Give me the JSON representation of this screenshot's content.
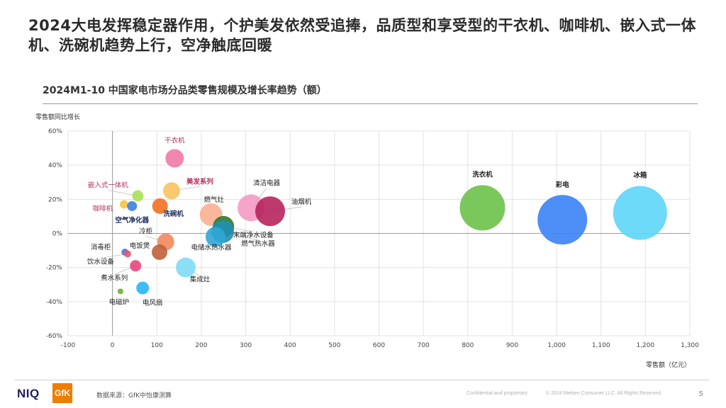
{
  "headline": "2024大电发挥稳定器作用，个护美发依然受追捧，品质型和享受型的干衣机、咖啡机、嵌入式一体机、洗碗机趋势上行，空净触底回暖",
  "chart_title": "2024M1-10 中国家电市场分品类零售规模及增长率趋势（额）",
  "footer": {
    "source": "数据来源：GfK中怡康测算",
    "confidential": "Confidential and proprietary",
    "copyright": "© 2024 Nielsen Consumer LLC. All Rights Reserved.",
    "page_number": "5",
    "logo_niq": "NIQ",
    "logo_gfk": "GfK"
  },
  "chart_data": {
    "type": "bubble",
    "xlabel": "零售额（亿元）",
    "ylabel": "零售额同比增长",
    "xlim": [
      -100,
      1300
    ],
    "ylim": [
      -60,
      60
    ],
    "x_ticks": [
      "-100",
      "0",
      "100",
      "200",
      "300",
      "400",
      "500",
      "600",
      "700",
      "800",
      "900",
      "1,000",
      "1,100",
      "1,200",
      "1,300"
    ],
    "y_ticks": [
      "60%",
      "40%",
      "20%",
      "0%",
      "-20%",
      "-40%",
      "-60%"
    ],
    "grid": true,
    "points": [
      {
        "name": "干衣机",
        "x": 140,
        "y": 44,
        "size": 13,
        "color": "#f07aa6",
        "label_color": "#b03060",
        "bold": false
      },
      {
        "name": "嵌入式一体机",
        "x": 57,
        "y": 22,
        "size": 8,
        "color": "#a9e05a",
        "label_color": "#b03060",
        "bold": false
      },
      {
        "name": "美发系列",
        "x": 133,
        "y": 25,
        "size": 12,
        "color": "#f9c25e",
        "label_color": "#b03060",
        "bold": true
      },
      {
        "name": "咖啡机",
        "x": 26,
        "y": 17,
        "size": 6,
        "color": "#f5c542",
        "label_color": "#b03060",
        "bold": false
      },
      {
        "name": "空气净化器",
        "x": 44,
        "y": 16,
        "size": 7,
        "color": "#3e7fe0",
        "label_color": "#1a2a5c",
        "bold": true
      },
      {
        "name": "洗碗机",
        "x": 107,
        "y": 16,
        "size": 11,
        "color": "#f36f21",
        "label_color": "#1a2a5c",
        "bold": true
      },
      {
        "name": "燃气灶",
        "x": 222,
        "y": 11,
        "size": 16,
        "color": "#f8b08f",
        "label_color": "#222222",
        "bold": false
      },
      {
        "name": "清洁电器",
        "x": 312,
        "y": 15,
        "size": 19,
        "color": "#f59ac4",
        "label_color": "#222222",
        "bold": false
      },
      {
        "name": "油烟机",
        "x": 355,
        "y": 13,
        "size": 21,
        "color": "#b7245c",
        "label_color": "#222222",
        "bold": false
      },
      {
        "name": "末端净水设备",
        "x": 250,
        "y": 4,
        "size": 15,
        "color": "#2d7a2d",
        "label_color": "#222222",
        "bold": false
      },
      {
        "name": "燃气热水器",
        "x": 248,
        "y": 1,
        "size": 16,
        "color": "#1f8fb3",
        "label_color": "#222222",
        "bold": false
      },
      {
        "name": "电储水热水器",
        "x": 232,
        "y": -2,
        "size": 14,
        "color": "#2fa6d6",
        "label_color": "#222222",
        "bold": false
      },
      {
        "name": "冷柜",
        "x": 120,
        "y": -5,
        "size": 12,
        "color": "#f08a5d",
        "label_color": "#222222",
        "bold": false
      },
      {
        "name": "电饭煲",
        "x": 106,
        "y": -11,
        "size": 11,
        "color": "#c0603a",
        "label_color": "#222222",
        "bold": false
      },
      {
        "name": "消毒柜",
        "x": 28,
        "y": -11,
        "size": 5,
        "color": "#5b6fd6",
        "label_color": "#222222",
        "bold": false
      },
      {
        "name": "饮水设备",
        "x": 34,
        "y": -12,
        "size": 5,
        "color": "#e8566c",
        "label_color": "#222222",
        "bold": false
      },
      {
        "name": "煮水系列",
        "x": 52,
        "y": -19,
        "size": 8,
        "color": "#e8467c",
        "label_color": "#222222",
        "bold": false
      },
      {
        "name": "集成灶",
        "x": 165,
        "y": -20,
        "size": 14,
        "color": "#7fdcf5",
        "label_color": "#222222",
        "bold": false
      },
      {
        "name": "电磁炉",
        "x": 18,
        "y": -34,
        "size": 4,
        "color": "#6fae3a",
        "label_color": "#222222",
        "bold": false
      },
      {
        "name": "电风扇",
        "x": 68,
        "y": -32,
        "size": 9,
        "color": "#29b6f6",
        "label_color": "#222222",
        "bold": false
      },
      {
        "name": "洗衣机",
        "x": 833,
        "y": 15,
        "size": 32,
        "color": "#6cc24a",
        "label_color": "#222222",
        "bold": true
      },
      {
        "name": "彩电",
        "x": 1013,
        "y": 8,
        "size": 35,
        "color": "#3b82f6",
        "label_color": "#222222",
        "bold": true
      },
      {
        "name": "冰箱",
        "x": 1188,
        "y": 12,
        "size": 38,
        "color": "#5dd6f8",
        "label_color": "#222222",
        "bold": true
      }
    ]
  }
}
